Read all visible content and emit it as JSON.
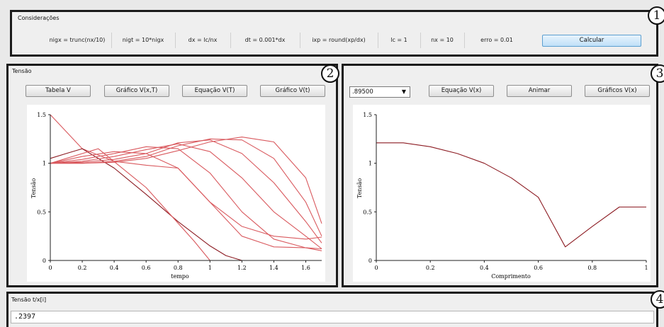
{
  "considerations": {
    "title": "Considerações",
    "fields": [
      "nigx = trunc(nx/10)",
      "nigt = 10*nigx",
      "dx = lc/nx",
      "dt = 0.001*dx",
      "ixp = round(xp/dx)",
      "lc = 1",
      "nx = 10",
      "erro = 0.01"
    ],
    "calc_label": "Calcular",
    "badge": "1"
  },
  "tension": {
    "title": "Tensão",
    "badge": "2",
    "buttons": [
      "Tabela V",
      "Gráfico V(x,T)",
      "Equação V(T)",
      "Gráfico V(t)"
    ],
    "xlabel": "tempo",
    "ylabel": "Tensão",
    "xticks": [
      "0",
      "0.2",
      "0.4",
      "0.6",
      "0.8",
      "1",
      "1.2",
      "1.4",
      "1.6"
    ],
    "yticks": [
      "0",
      "0.5",
      "1",
      "1.5"
    ]
  },
  "length_panel": {
    "badge": "3",
    "select_value": ".89500",
    "buttons": [
      "Equação V(x)",
      "Animar",
      "Gráficos V(x)"
    ],
    "xlabel": "Comprimento",
    "ylabel": "Tensão",
    "xticks": [
      "0",
      "0.2",
      "0.4",
      "0.6",
      "0.8",
      "1"
    ],
    "yticks": [
      "0",
      "0.5",
      "1",
      "1.5"
    ]
  },
  "tension_input": {
    "label": "Tensão t/x[i]",
    "value": ".2397",
    "badge": "4"
  },
  "colors": {
    "curve_red": "#d9595e",
    "curve_dark": "#8c1b22",
    "accent_blue": "#5c9fd0"
  },
  "chart_data": [
    {
      "type": "line",
      "xlabel": "tempo",
      "ylabel": "Tensão",
      "xlim": [
        0,
        1.7
      ],
      "ylim": [
        0,
        1.5
      ],
      "series": [
        {
          "x": [
            0,
            0.2,
            0.4,
            0.6,
            0.8,
            1.0,
            1.2,
            1.4,
            1.6,
            1.7
          ],
          "y": [
            1.5,
            1.15,
            1.02,
            0.98,
            0.95,
            0.6,
            0.35,
            0.25,
            0.22,
            0.24
          ]
        },
        {
          "x": [
            0,
            0.1,
            0.2,
            0.4,
            0.6,
            0.8,
            1.0,
            1.1,
            1.2
          ],
          "y": [
            1.05,
            1.1,
            1.15,
            0.95,
            0.68,
            0.4,
            0.15,
            0.05,
            0
          ]
        },
        {
          "x": [
            0,
            0.3,
            0.6,
            0.9,
            1.0
          ],
          "y": [
            1.0,
            1.15,
            0.75,
            0.2,
            0
          ]
        },
        {
          "x": [
            0,
            0.2,
            0.4,
            0.6,
            0.8,
            1.0,
            1.2,
            1.4,
            1.6,
            1.7
          ],
          "y": [
            1.0,
            1.07,
            1.12,
            1.1,
            0.95,
            0.6,
            0.25,
            0.14,
            0.13,
            0.12
          ]
        },
        {
          "x": [
            0,
            0.2,
            0.4,
            0.6,
            0.8,
            1.0,
            1.2,
            1.4,
            1.6,
            1.7
          ],
          "y": [
            1.0,
            1.04,
            1.1,
            1.17,
            1.15,
            0.9,
            0.5,
            0.22,
            0.13,
            0.1
          ]
        },
        {
          "x": [
            0,
            0.2,
            0.4,
            0.6,
            0.8,
            1.0,
            1.2,
            1.4,
            1.6,
            1.7
          ],
          "y": [
            1.0,
            1.02,
            1.07,
            1.14,
            1.2,
            1.12,
            0.85,
            0.5,
            0.25,
            0.12
          ]
        },
        {
          "x": [
            0,
            0.2,
            0.4,
            0.6,
            0.8,
            1.0,
            1.2,
            1.4,
            1.6,
            1.7
          ],
          "y": [
            1.0,
            1.01,
            1.04,
            1.1,
            1.21,
            1.24,
            1.1,
            0.8,
            0.4,
            0.18
          ]
        },
        {
          "x": [
            0,
            0.2,
            0.4,
            0.6,
            0.8,
            1.0,
            1.2,
            1.4,
            1.6,
            1.7
          ],
          "y": [
            1.0,
            1.0,
            1.02,
            1.07,
            1.18,
            1.25,
            1.24,
            1.05,
            0.6,
            0.25
          ]
        },
        {
          "x": [
            0,
            0.2,
            0.4,
            0.6,
            0.8,
            1.0,
            1.2,
            1.4,
            1.6,
            1.7
          ],
          "y": [
            1.0,
            1.0,
            1.01,
            1.05,
            1.13,
            1.22,
            1.27,
            1.22,
            0.85,
            0.38
          ]
        }
      ]
    },
    {
      "type": "line",
      "xlabel": "Comprimento",
      "ylabel": "Tensão",
      "xlim": [
        0,
        1
      ],
      "ylim": [
        0,
        1.5
      ],
      "series": [
        {
          "x": [
            0,
            0.1,
            0.2,
            0.3,
            0.4,
            0.5,
            0.6,
            0.7,
            0.8,
            0.9,
            1.0
          ],
          "y": [
            1.21,
            1.21,
            1.17,
            1.1,
            1.0,
            0.85,
            0.65,
            0.14,
            0.35,
            0.55,
            0.55
          ]
        }
      ]
    }
  ]
}
